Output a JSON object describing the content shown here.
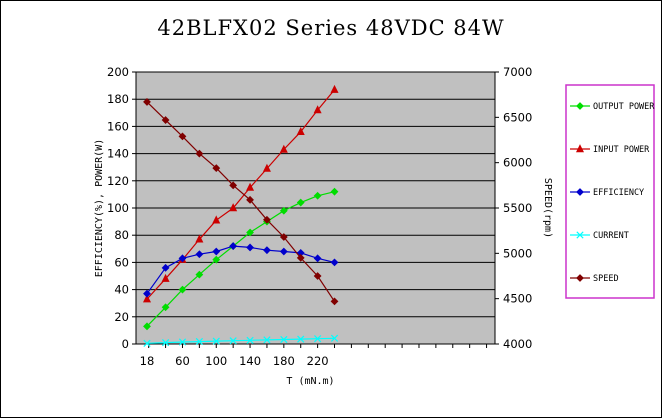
{
  "chart_data": {
    "type": "line",
    "title": "42BLFX02 Series 48VDC 84W",
    "xlabel": "T (mN.m)",
    "ylabel_left": "EFFICIENCY(%), POWER(W)",
    "ylabel_right": "SPEED(rpm)",
    "x_tick_labels": [
      "18",
      "60",
      "100",
      "140",
      "180",
      "220"
    ],
    "x_tick_values": [
      18,
      60,
      100,
      140,
      180,
      220
    ],
    "xlim": [
      18,
      430
    ],
    "ylim_left": [
      0,
      200
    ],
    "ylim_right": [
      4000,
      7000
    ],
    "y_left_ticks": [
      0,
      20,
      40,
      60,
      80,
      100,
      120,
      140,
      160,
      180,
      200
    ],
    "y_right_ticks": [
      4000,
      4500,
      5000,
      5500,
      6000,
      6500,
      7000
    ],
    "grid": "horizontal",
    "plot_background": "#c0c0c0",
    "legend_position": "right",
    "x": [
      18,
      40,
      60,
      80,
      100,
      120,
      140,
      160,
      180,
      200,
      220,
      240
    ],
    "series": [
      {
        "name": "OUTPUT POWER",
        "axis": "left",
        "color": "#00dd00",
        "marker": "diamond",
        "values": [
          13,
          27,
          40,
          51,
          62,
          72,
          82,
          90,
          98,
          104,
          109,
          112
        ]
      },
      {
        "name": "INPUT POWER",
        "axis": "left",
        "color": "#cc0000",
        "marker": "triangle",
        "values": [
          33,
          48,
          62,
          77,
          91,
          100,
          115,
          129,
          143,
          156,
          172,
          187
        ]
      },
      {
        "name": "EFFICIENCY",
        "axis": "left",
        "color": "#0000cc",
        "marker": "diamond",
        "values": [
          37,
          56,
          63,
          66,
          68,
          72,
          71,
          69,
          68,
          67,
          63,
          60
        ]
      },
      {
        "name": "CURRENT",
        "axis": "left",
        "color": "#00ffff",
        "marker": "x",
        "values": [
          0.5,
          1,
          1.5,
          1.8,
          2.1,
          2.4,
          2.7,
          3.0,
          3.3,
          3.6,
          3.9,
          4.2
        ]
      },
      {
        "name": "SPEED",
        "axis": "right",
        "color": "#800000",
        "marker": "diamond",
        "values": [
          6670,
          6470,
          6290,
          6100,
          5940,
          5750,
          5590,
          5370,
          5180,
          4950,
          4750,
          4470
        ]
      }
    ]
  }
}
